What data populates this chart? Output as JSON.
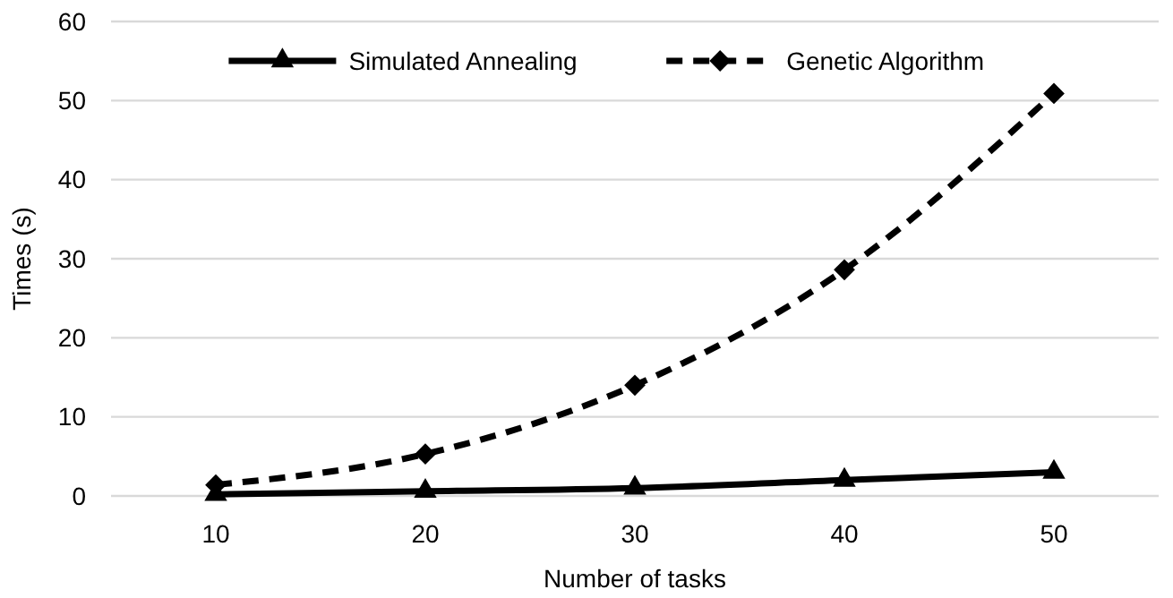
{
  "chart_data": {
    "type": "line",
    "xlabel": "Number of tasks",
    "ylabel": "Times (s)",
    "categories": [
      "10",
      "20",
      "30",
      "40",
      "50"
    ],
    "series": [
      {
        "name": "Simulated Annealing",
        "color": "#000000",
        "values": [
          0.2,
          0.6,
          1.0,
          2.0,
          3.0
        ],
        "marker": "triangle",
        "line_style": "solid"
      },
      {
        "name": "Genetic Algorithm",
        "color": "#000000",
        "values": [
          1.4,
          5.3,
          14.0,
          28.6,
          50.9
        ],
        "marker": "diamond",
        "line_style": "dashed"
      }
    ],
    "ylim": [
      0,
      60
    ],
    "yticks": [
      0,
      10,
      20,
      30,
      40,
      50,
      60
    ],
    "grid": "y",
    "legend": "top"
  }
}
